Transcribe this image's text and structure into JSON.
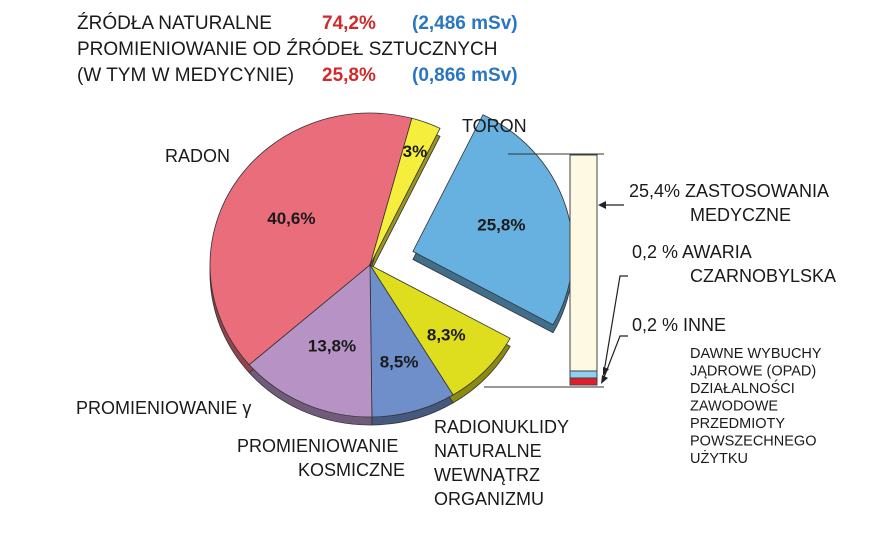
{
  "header": {
    "line1_label": "ŹRÓDŁA NATURALNE",
    "line1_pct": "74,2%",
    "line1_dose": "(2,486 mSv)",
    "line2": "PROMIENIOWANIE OD ŹRÓDEŁ SZTUCZNYCH",
    "line3_label": "(W TYM W MEDYCYNIE)",
    "line3_pct": "25,8%",
    "line3_dose": "(0,866 mSv)"
  },
  "colors": {
    "radon": "#ea6d7b",
    "toron": "#f5ee3c",
    "artificial": "#67b1e0",
    "radionuclides": "#dede1e",
    "cosmic": "#6f8fcb",
    "gamma": "#b693c4",
    "header_red": "#d22a2a",
    "header_blue": "#2a76c0",
    "bar_fill": "#fdf9e3",
    "bar_blue": "#8fd0ee",
    "bar_red": "#e21d2b"
  },
  "chart_data": {
    "type": "pie",
    "slices": [
      {
        "label": "RADON",
        "value": 40.6,
        "value_label": "40,6%",
        "color": "#ea6d7b"
      },
      {
        "label": "TORON",
        "value": 3.0,
        "value_label": "3%",
        "color": "#f5ee3c"
      },
      {
        "label": "PROMIENIOWANIE OD ŹRÓDEŁ SZTUCZNYCH",
        "value": 25.8,
        "value_label": "25,8%",
        "color": "#67b1e0",
        "exploded": true
      },
      {
        "label": "RADIONUKLIDY NATURALNE WEWNĄTRZ ORGANIZMU",
        "value": 8.3,
        "value_label": "8,3%",
        "color": "#dede1e"
      },
      {
        "label": "PROMIENIOWANIE KOSMICZNE",
        "value": 8.5,
        "value_label": "8,5%",
        "color": "#6f8fcb"
      },
      {
        "label": "PROMIENIOWANIE γ",
        "value": 13.8,
        "value_label": "13,8%",
        "color": "#b693c4"
      }
    ],
    "breakdown": {
      "type": "stacked-bar",
      "parts": [
        {
          "pct": "25,4%",
          "value": 25.4,
          "label": "ZASTOSOWANIA MEDYCZNE"
        },
        {
          "pct": "0,2 %",
          "value": 0.2,
          "label": "AWARIA CZARNOBYLSKA"
        },
        {
          "pct": "0,2 %",
          "value": 0.2,
          "label": "INNE"
        }
      ],
      "inne_items": [
        "DAWNE WYBUCHY",
        "JĄDROWE (OPAD)",
        "DZIAŁALNOŚCI",
        "ZAWODOWE",
        "PRZEDMIOTY",
        "POWSZECHNEGO",
        "UŻYTKU"
      ]
    },
    "outer_labels": {
      "radon": "RADON",
      "toron": "TORON",
      "gamma_line": "PROMIENIOWANIE γ",
      "cosmic_line1": "PROMIENIOWANIE",
      "cosmic_line2": "KOSMICZNE",
      "radio_line1": "RADIONUKLIDY",
      "radio_line2": "NATURALNE",
      "radio_line3": "WEWNĄTRZ",
      "radio_line4": "ORGANIZMU",
      "med_line1": "25,4% ZASTOSOWANIA",
      "med_line2": "MEDYCZNE",
      "cz_line1": "0,2 % AWARIA",
      "cz_line2": "CZARNOBYLSKA",
      "inne_line": "0,2 % INNE"
    }
  }
}
